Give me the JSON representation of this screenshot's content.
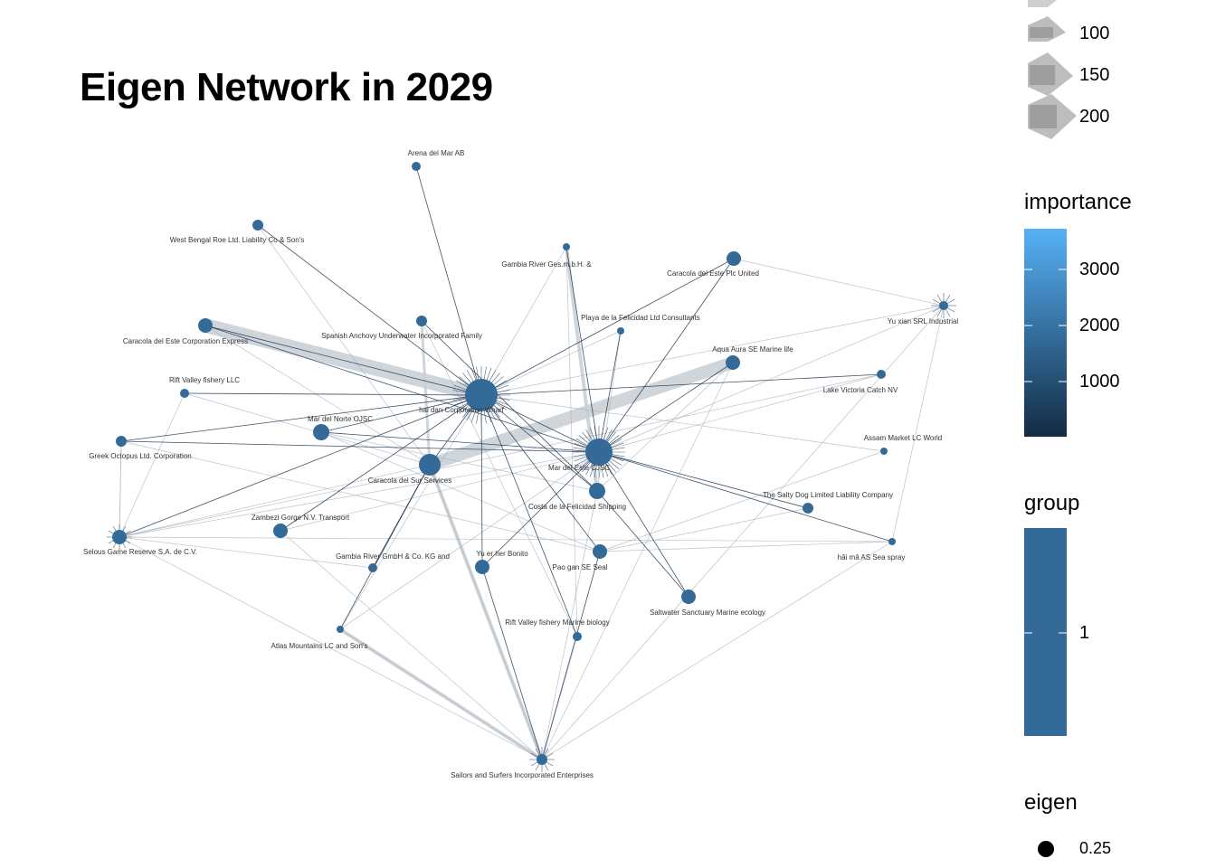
{
  "title": "Eigen Network in 2029",
  "legend": {
    "width_legend": {
      "entries": [
        "100",
        "150",
        "200"
      ]
    },
    "importance": {
      "title": "importance",
      "ticks": [
        "3000",
        "2000",
        "1000"
      ],
      "gradient": [
        "#132b43",
        "#56b1f7"
      ]
    },
    "group": {
      "title": "group",
      "ticks": [
        "1"
      ],
      "color": "#336a98"
    },
    "eigen": {
      "title": "eigen",
      "ticks": [
        "0.25"
      ]
    }
  },
  "colors": {
    "node": "#336a98",
    "edge_dark": "#1b3550",
    "edge_light": "#aab3bc",
    "edge_thick": "#c8ced4"
  },
  "nodes": [
    {
      "id": "n_arena",
      "label": "Arena del Mar AB"
    },
    {
      "id": "n_westbengal",
      "label": "West Bengal   Roe Ltd. Liability Co & Son's"
    },
    {
      "id": "n_gambia_ges",
      "label": "Gambia River   Ges.m.b.H. &"
    },
    {
      "id": "n_caracola_plc",
      "label": "Caracola del Este Plc United"
    },
    {
      "id": "n_yuxian",
      "label": "Yu xian  SRL Industrial"
    },
    {
      "id": "n_playa",
      "label": "Playa de la Felicidad Ltd Consultants"
    },
    {
      "id": "n_spanish",
      "label": "Spanish Anchovy Underwater Incorporated Family"
    },
    {
      "id": "n_caracola_corp",
      "label": "Caracola del Este Corporation Express"
    },
    {
      "id": "n_aquaaura",
      "label": "Aqua Aura SE Marine life"
    },
    {
      "id": "n_lakevictoria",
      "label": "Lake Victoria Catch  NV"
    },
    {
      "id": "n_riftvalley_llc",
      "label": "Rift Valley fishery LLC"
    },
    {
      "id": "n_haidan",
      "label": "hai dan Corporation Wharf"
    },
    {
      "id": "n_marnorte",
      "label": "Mar del Norte OJSC"
    },
    {
      "id": "n_assam",
      "label": "Assam  Market LC World"
    },
    {
      "id": "n_greek",
      "label": "Greek Octopus Ltd. Corporation"
    },
    {
      "id": "n_caracola_sur",
      "label": "Caracola del Sur Services"
    },
    {
      "id": "n_marestecjsc",
      "label": "Mar del Este CJSC"
    },
    {
      "id": "n_costa",
      "label": "Costa de la Felicidad Shipping"
    },
    {
      "id": "n_saltydog",
      "label": "The Salty Dog Limited Liability Company"
    },
    {
      "id": "n_zambezi",
      "label": "Zambezi Gorge  N.V. Transport"
    },
    {
      "id": "n_selous",
      "label": "Selous Game Reserve  S.A. de C.V."
    },
    {
      "id": "n_haima",
      "label": "hǎi mǎ AS Sea spray"
    },
    {
      "id": "n_gambia_gmbh",
      "label": "Gambia River   GmbH & Co. KG and"
    },
    {
      "id": "n_yuer",
      "label": "Yu er her  Bonito"
    },
    {
      "id": "n_paogan",
      "label": "Pao gan SE Seal"
    },
    {
      "id": "n_saltwater",
      "label": "Saltwater Sanctuary Marine ecology"
    },
    {
      "id": "n_rift_bio",
      "label": "Rift Valley fishery Marine biology"
    },
    {
      "id": "n_atlas",
      "label": "Atlas Mountains  LC and Son's"
    },
    {
      "id": "n_sailors",
      "label": "Sailors and Surfers Incorporated Enterprises"
    }
  ]
}
